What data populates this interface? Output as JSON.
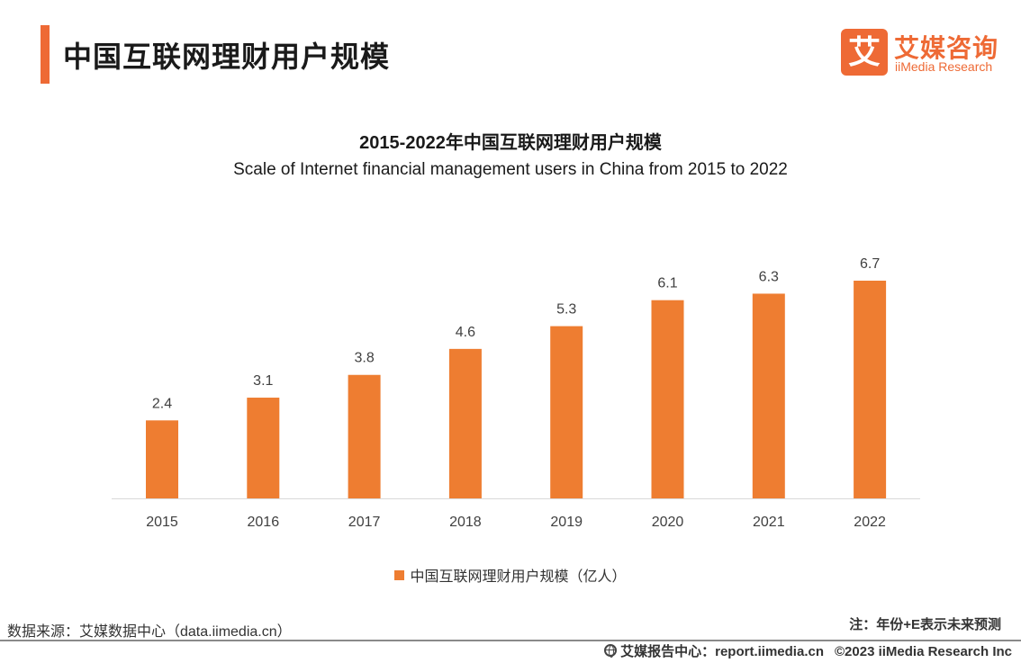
{
  "header": {
    "title": "中国互联网理财用户规模",
    "logo_mark": "艾",
    "logo_cn": "艾媒咨询",
    "logo_en": "iiMedia Research"
  },
  "chart_data": {
    "type": "bar",
    "title": "2015-2022年中国互联网理财用户规模",
    "subtitle": "Scale of Internet financial management users in China from 2015 to 2022",
    "categories": [
      "2015",
      "2016",
      "2017",
      "2018",
      "2019",
      "2020",
      "2021",
      "2022"
    ],
    "series": [
      {
        "name": "中国互联网理财用户规模（亿人）",
        "values": [
          2.4,
          3.1,
          3.8,
          4.6,
          5.3,
          6.1,
          6.3,
          6.7
        ],
        "color": "#ee7d31"
      }
    ],
    "ylim": [
      0,
      6.7
    ],
    "grid": false,
    "legend": "bottom-center"
  },
  "footer": {
    "source": "数据来源：艾媒数据中心（data.iimedia.cn）",
    "note": "注：年份+E表示未来预测",
    "report_center": "艾媒报告中心：report.iimedia.cn",
    "copyright": "©2023  iiMedia Research  Inc"
  }
}
